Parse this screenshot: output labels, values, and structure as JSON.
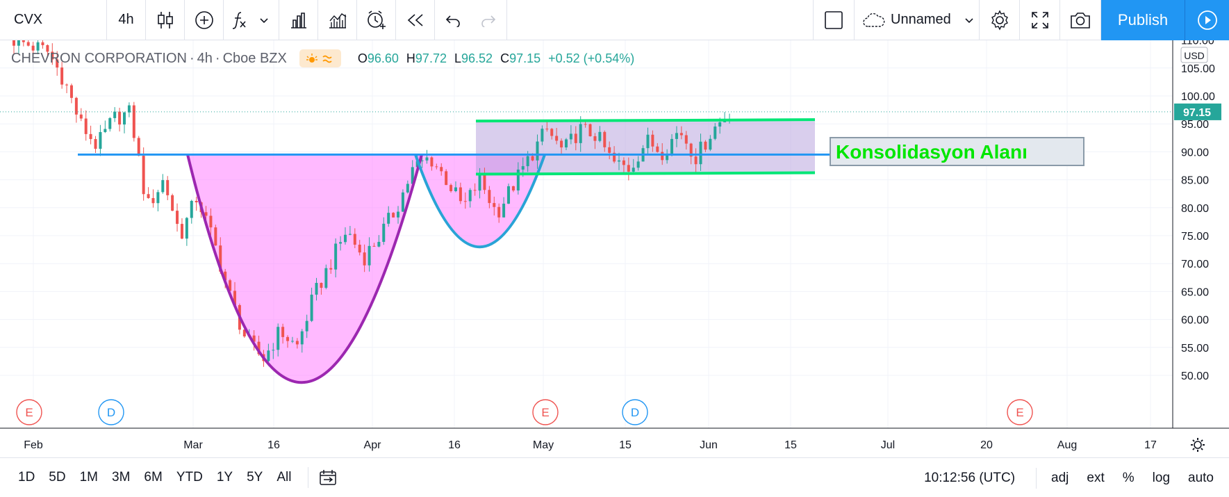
{
  "toolbar": {
    "symbol": "CVX",
    "interval": "4h",
    "layout_name": "Unnamed",
    "publish_label": "Publish",
    "icons": [
      "candles-icon",
      "add-compare-icon",
      "indicators-icon",
      "chevron-down-icon",
      "financials-icon",
      "templates-icon",
      "alert-icon",
      "replay-icon",
      "undo-icon",
      "redo-icon",
      "layout-square-icon",
      "cloud-icon",
      "chevron-down-icon",
      "settings-icon",
      "fullscreen-icon",
      "camera-icon",
      "play-icon"
    ]
  },
  "legend": {
    "name": "CHEVRON CORPORATION",
    "interval": "4h",
    "exchange": "Cboe BZX",
    "session_icon": "sun-wave-icon",
    "o_label": "O",
    "o": "96.60",
    "h_label": "H",
    "h": "97.72",
    "l_label": "L",
    "l": "96.52",
    "c_label": "C",
    "c": "97.15",
    "change": "+0.52 (+0.54%)"
  },
  "price_axis": {
    "currency": "USD",
    "labels": [
      "110.00",
      "105.00",
      "100.00",
      "95.00",
      "90.00",
      "85.00",
      "80.00",
      "75.00",
      "70.00",
      "65.00",
      "60.00",
      "55.00",
      "50.00"
    ],
    "last_price": "97.15"
  },
  "time_axis": {
    "labels": [
      "Feb",
      "Mar",
      "16",
      "Apr",
      "16",
      "May",
      "15",
      "Jun",
      "15",
      "Jul",
      "20",
      "Aug",
      "17"
    ],
    "gear_icon": "settings-icon"
  },
  "annotation": {
    "text": "Konsolidasyon Alanı"
  },
  "events": [
    {
      "letter": "E",
      "type": "earnings"
    },
    {
      "letter": "D",
      "type": "dividend"
    },
    {
      "letter": "E",
      "type": "earnings"
    },
    {
      "letter": "D",
      "type": "dividend"
    },
    {
      "letter": "E",
      "type": "earnings"
    }
  ],
  "bottom_bar": {
    "ranges": [
      "1D",
      "5D",
      "1M",
      "3M",
      "6M",
      "YTD",
      "1Y",
      "5Y",
      "All"
    ],
    "time": "10:12:56 (UTC)",
    "toggles": [
      "adj",
      "ext",
      "%",
      "log",
      "auto"
    ]
  },
  "colors": {
    "up": "#26a69a",
    "down": "#ef5350",
    "accent": "#2196f3",
    "cup": "#9c27b0",
    "cup_fill": "#ff80ff",
    "rectangle_fill": "#b39ddb",
    "channel": "#00e676",
    "neckline": "#2196f3",
    "label_text": "#00e600"
  },
  "chart_data": {
    "type": "candlestick",
    "ylim": [
      50,
      110
    ],
    "last_price": 97.15,
    "neckline": 89.5,
    "consolidation_range": [
      86,
      95.5
    ],
    "x_ticks": [
      "Feb",
      "Mar",
      "16",
      "Apr",
      "16",
      "May",
      "15",
      "Jun",
      "15",
      "Jul",
      "20",
      "Aug",
      "17"
    ],
    "close_path": [
      {
        "date": "Jan 28",
        "close": 110
      },
      {
        "date": "Feb 10",
        "close": 109
      },
      {
        "date": "Feb 20",
        "close": 108
      },
      {
        "date": "Feb 24",
        "close": 103
      },
      {
        "date": "Feb 27",
        "close": 95
      },
      {
        "date": "Feb 28",
        "close": 91
      },
      {
        "date": "Mar 3",
        "close": 96
      },
      {
        "date": "Mar 5",
        "close": 97
      },
      {
        "date": "Mar 9",
        "close": 80
      },
      {
        "date": "Mar 11",
        "close": 85
      },
      {
        "date": "Mar 12",
        "close": 75
      },
      {
        "date": "Mar 16",
        "close": 82
      },
      {
        "date": "Mar 17",
        "close": 74
      },
      {
        "date": "Mar 18",
        "close": 64
      },
      {
        "date": "Mar 19",
        "close": 56
      },
      {
        "date": "Mar 20",
        "close": 53
      },
      {
        "date": "Mar 23",
        "close": 58
      },
      {
        "date": "Mar 24",
        "close": 55
      },
      {
        "date": "Mar 25",
        "close": 64
      },
      {
        "date": "Mar 26",
        "close": 70
      },
      {
        "date": "Mar 30",
        "close": 76
      },
      {
        "date": "Apr 1",
        "close": 71
      },
      {
        "date": "Apr 3",
        "close": 75
      },
      {
        "date": "Apr 6",
        "close": 80
      },
      {
        "date": "Apr 8",
        "close": 87
      },
      {
        "date": "Apr 9",
        "close": 89
      },
      {
        "date": "Apr 13",
        "close": 85
      },
      {
        "date": "Apr 15",
        "close": 80
      },
      {
        "date": "Apr 17",
        "close": 85
      },
      {
        "date": "Apr 21",
        "close": 79
      },
      {
        "date": "Apr 23",
        "close": 84
      },
      {
        "date": "Apr 27",
        "close": 89
      },
      {
        "date": "Apr 29",
        "close": 94
      },
      {
        "date": "May 1",
        "close": 90
      },
      {
        "date": "May 5",
        "close": 94
      },
      {
        "date": "May 8",
        "close": 93
      },
      {
        "date": "May 12",
        "close": 88
      },
      {
        "date": "May 14",
        "close": 87
      },
      {
        "date": "May 18",
        "close": 92
      },
      {
        "date": "May 22",
        "close": 90
      },
      {
        "date": "May 26",
        "close": 94
      },
      {
        "date": "May 29",
        "close": 89
      },
      {
        "date": "Jun 2",
        "close": 94
      },
      {
        "date": "Jun 3",
        "close": 97.15
      }
    ]
  }
}
